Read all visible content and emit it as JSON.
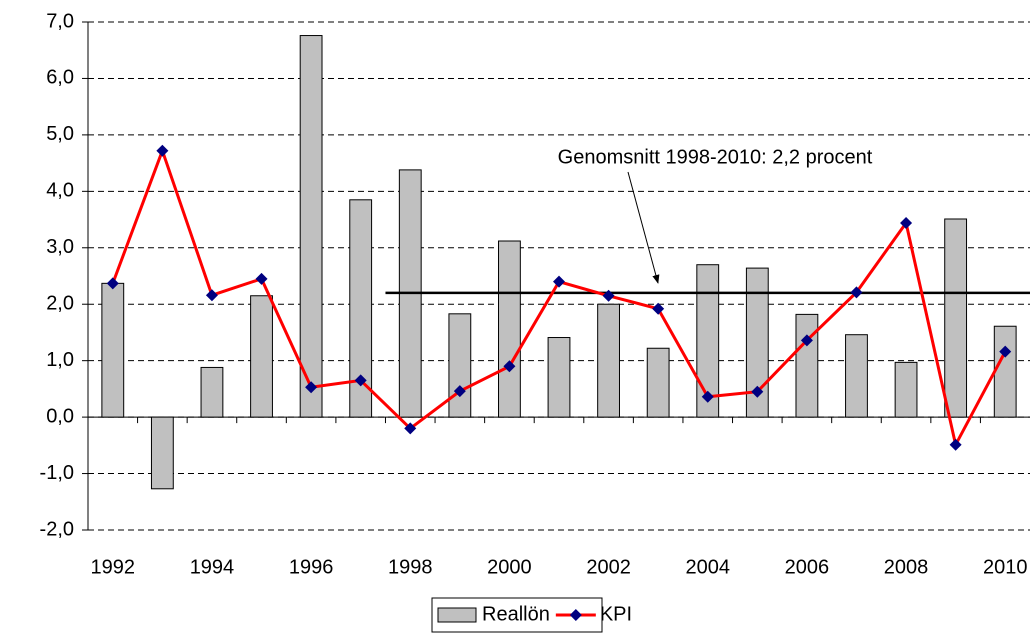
{
  "chart_data": {
    "type": "bar_line",
    "categories": [
      "1992",
      null,
      "1994",
      null,
      "1996",
      null,
      "1998",
      null,
      "2000",
      null,
      "2002",
      null,
      "2004",
      null,
      "2006",
      null,
      "2008",
      null,
      "2010"
    ],
    "series": [
      {
        "name": "Reallön",
        "type": "bar",
        "color": "#c0c0c0",
        "values": [
          2.37,
          -1.27,
          0.88,
          2.15,
          6.76,
          3.85,
          4.38,
          1.83,
          3.12,
          1.41,
          2.0,
          1.22,
          2.7,
          2.64,
          1.82,
          1.46,
          0.97,
          3.51,
          1.61
        ]
      },
      {
        "name": "KPI",
        "type": "line",
        "color": "#ff0000",
        "marker_color": "#000080",
        "values": [
          2.37,
          4.72,
          2.16,
          2.45,
          0.53,
          0.65,
          -0.2,
          0.46,
          0.9,
          2.4,
          2.15,
          1.92,
          0.36,
          0.45,
          1.36,
          2.21,
          3.44,
          -0.49,
          1.16
        ]
      }
    ],
    "reference_line": {
      "value": 2.2,
      "from": "1998"
    },
    "annotation": "Genomsnitt 1998-2010: 2,2 procent",
    "ylim": [
      -2,
      7
    ],
    "yticks": [
      {
        "value": -2,
        "label": "-2,0"
      },
      {
        "value": -1,
        "label": "-1,0"
      },
      {
        "value": 0,
        "label": "0,0"
      },
      {
        "value": 1,
        "label": "1,0"
      },
      {
        "value": 2,
        "label": "2,0"
      },
      {
        "value": 3,
        "label": "3,0"
      },
      {
        "value": 4,
        "label": "4,0"
      },
      {
        "value": 5,
        "label": "5,0"
      },
      {
        "value": 6,
        "label": "6,0"
      },
      {
        "value": 7,
        "label": "7,0"
      }
    ],
    "grid": true,
    "legend": "bottom"
  }
}
